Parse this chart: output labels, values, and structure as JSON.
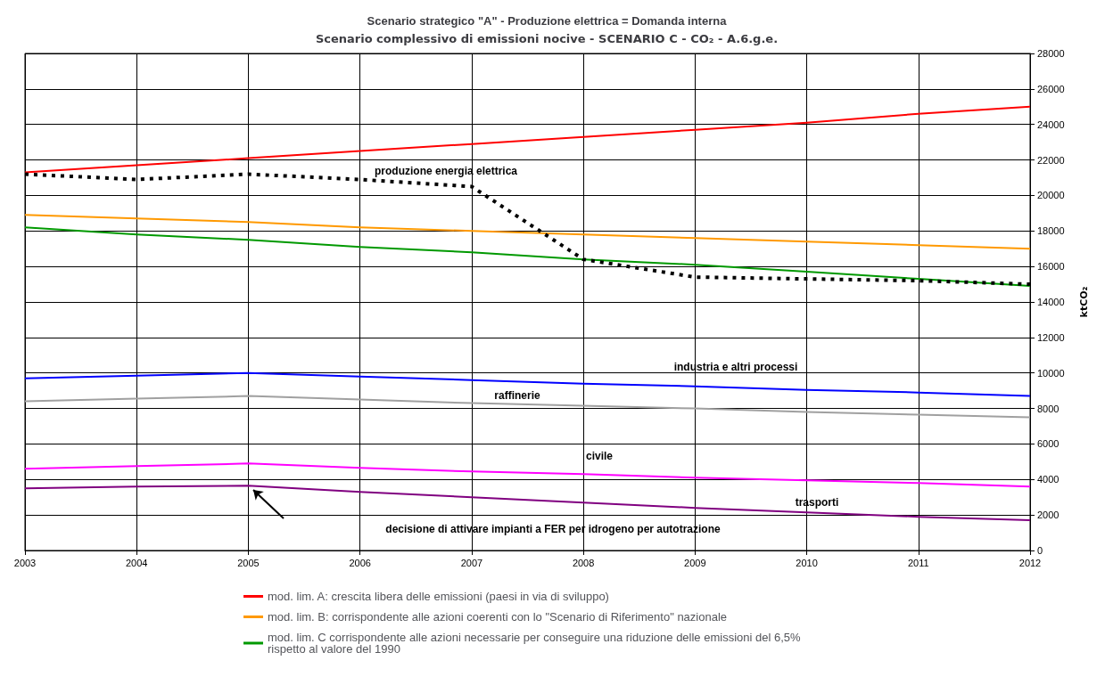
{
  "chart_data": {
    "type": "line",
    "title": "Scenario strategico \"A\" - Produzione elettrica = Domanda interna",
    "subtitle": "Scenario complessivo di emissioni nocive - SCENARIO C - CO₂ - A.6.g.e.",
    "ylabel": "ktCO₂",
    "x": [
      2003,
      2004,
      2005,
      2006,
      2007,
      2008,
      2009,
      2010,
      2011,
      2012
    ],
    "series": [
      {
        "name": "mod. lim. A: crescita libera delle emissioni (paesi in via di sviluppo)",
        "color": "#ff0000",
        "values": [
          21300,
          21700,
          22100,
          22500,
          22900,
          23300,
          23700,
          24100,
          24600,
          25000
        ]
      },
      {
        "name": "mod. lim. B: corrispondente alle azioni coerenti con lo \"Scenario di Riferimento\" nazionale",
        "color": "#ff9900",
        "values": [
          18900,
          18700,
          18500,
          18200,
          18000,
          17800,
          17600,
          17400,
          17200,
          17000
        ]
      },
      {
        "name": "mod. lim. C corrispondente alle azioni necessarie per conseguire una riduzione delle emissioni del 6,5% rispetto al valore del 1990",
        "color": "#009900",
        "values": [
          18200,
          17800,
          17500,
          17100,
          16800,
          16400,
          16100,
          15700,
          15300,
          14900
        ]
      },
      {
        "color": "#000000",
        "line_style": "dashed",
        "values": [
          21200,
          20900,
          21200,
          20900,
          20500,
          16400,
          15400,
          15300,
          15200,
          15000
        ]
      },
      {
        "color": "#0000ff",
        "values": [
          9700,
          9850,
          10000,
          9800,
          9600,
          9400,
          9250,
          9050,
          8900,
          8700
        ]
      },
      {
        "color": "#a0a0a0",
        "values": [
          8400,
          8550,
          8700,
          8500,
          8300,
          8150,
          8000,
          7800,
          7650,
          7500
        ]
      },
      {
        "color": "#ff00ff",
        "values": [
          4600,
          4750,
          4900,
          4650,
          4450,
          4300,
          4100,
          3950,
          3800,
          3600
        ]
      },
      {
        "color": "#800080",
        "values": [
          3500,
          3600,
          3650,
          3300,
          3000,
          2700,
          2400,
          2150,
          1900,
          1700
        ]
      }
    ],
    "annotations": [
      "produzione energia elettrica",
      "industria e altri processi",
      "raffinerie",
      "civile",
      "trasporti",
      "decisione di attivare impianti a FER per idrogeno per autotrazione"
    ],
    "xlim": [
      2003,
      2012
    ],
    "xticks": [
      2003,
      2004,
      2005,
      2006,
      2007,
      2008,
      2009,
      2010,
      2011,
      2012
    ],
    "ylim": [
      0,
      28000
    ],
    "yticks": [
      0,
      2000,
      4000,
      6000,
      8000,
      10000,
      12000,
      14000,
      16000,
      18000,
      20000,
      22000,
      24000,
      26000,
      28000
    ],
    "grid": true,
    "legend": "bottom",
    "marker": "none",
    "line_style": "solid"
  }
}
